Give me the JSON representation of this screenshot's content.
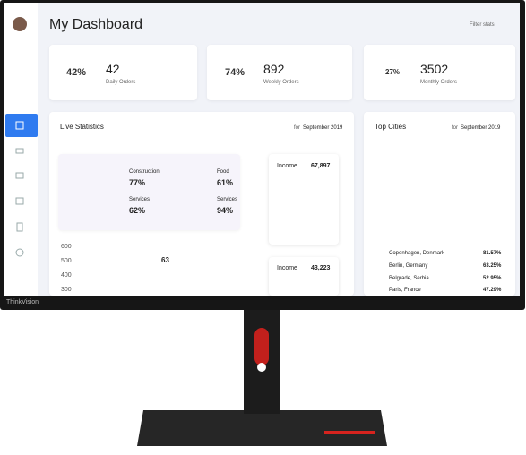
{
  "header": {
    "title": "My Dashboard",
    "filter": "Filter stats"
  },
  "stats": [
    {
      "percent": "42%",
      "value": "42",
      "label": "Daily Orders"
    },
    {
      "percent": "74%",
      "value": "892",
      "label": "Weekly Orders"
    },
    {
      "percent": "27%",
      "value": "3502",
      "label": "Monthly Orders"
    }
  ],
  "live": {
    "title": "Live Statistics",
    "period_prefix": "for",
    "period": "September 2019",
    "rings": [
      {
        "name": "Construction",
        "value": "77%"
      },
      {
        "name": "Services",
        "value": "62%"
      },
      {
        "name": "Food",
        "value": "61%"
      },
      {
        "name": "Services",
        "value": "94%"
      }
    ],
    "income": [
      {
        "label": "Income",
        "value": "67,897"
      },
      {
        "label": "Income",
        "value": "43,223"
      }
    ],
    "line_axis": [
      "600",
      "500",
      "400",
      "300"
    ],
    "line_label": "63"
  },
  "cities": {
    "title": "Top Cities",
    "period_prefix": "for",
    "period": "September 2019",
    "rows": [
      {
        "name": "Copenhagen, Denmark",
        "value": "81.57%"
      },
      {
        "name": "Berlin, Germany",
        "value": "63.25%"
      },
      {
        "name": "Belgrade, Serbia",
        "value": "52.95%"
      },
      {
        "name": "Paris, France",
        "value": "47.29%"
      }
    ]
  },
  "brand": "ThinkVision"
}
